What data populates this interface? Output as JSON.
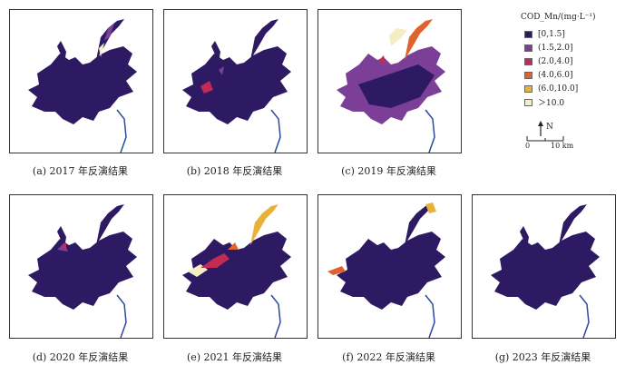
{
  "legend": {
    "title": "COD_Mn/(mg·L⁻¹)",
    "classes": [
      {
        "label": "[0,1.5]",
        "color": "#2d1a63"
      },
      {
        "label": "(1.5,2.0]",
        "color": "#7b3f98"
      },
      {
        "label": "(2.0,4.0]",
        "color": "#c22b54"
      },
      {
        "label": "(4.0,6.0]",
        "color": "#e0622e"
      },
      {
        "label": "(6.0,10.0]",
        "color": "#e8b23a"
      },
      {
        "label": "＞10.0",
        "color": "#f3eec4"
      }
    ],
    "north": "N",
    "scale_zero": "0",
    "scale_end": "10 km"
  },
  "panels": [
    {
      "caption": "(a) 2017 年反演结果"
    },
    {
      "caption": "(b) 2018 年反演结果"
    },
    {
      "caption": "(c) 2019 年反演结果"
    },
    {
      "caption": "(d) 2020 年反演结果"
    },
    {
      "caption": "(e) 2021 年反演结果"
    },
    {
      "caption": "(f) 2022 年反演结果"
    },
    {
      "caption": "(g) 2023 年反演结果"
    }
  ]
}
